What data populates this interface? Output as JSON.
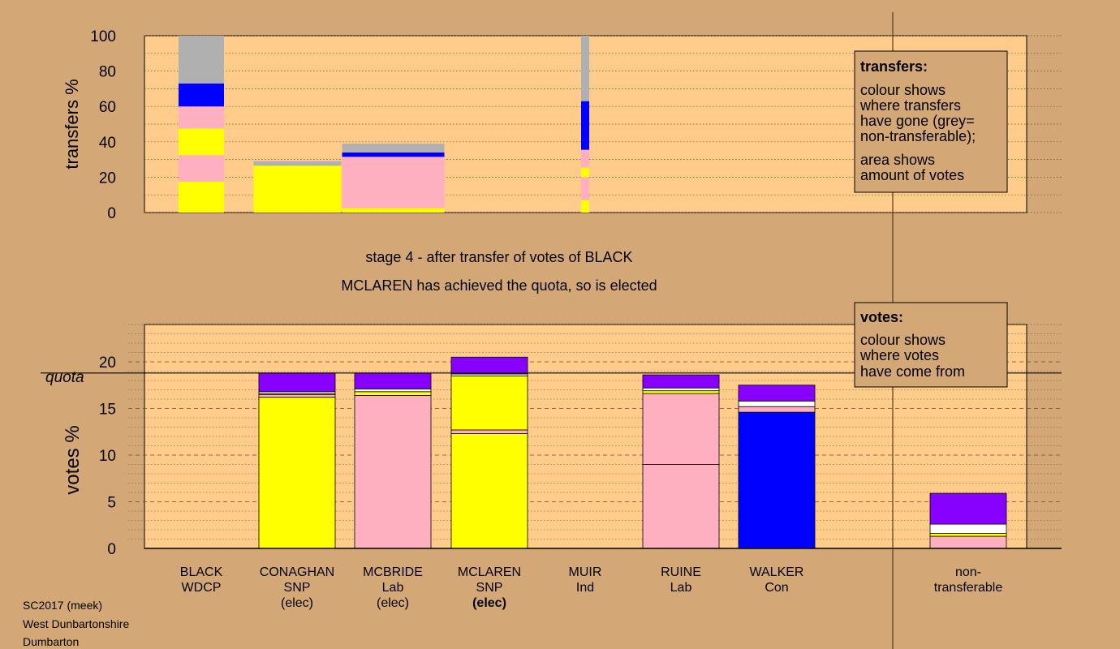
{
  "colors": {
    "page_bg": "#d4a876",
    "plot_bg": "#ffcc8c",
    "party_snp": "#ffff00",
    "party_lab": "#ffb0c0",
    "party_con": "#0000ff",
    "party_other": "#8800ff",
    "non_transferable": "#b0b0b0",
    "white": "#ffffff"
  },
  "stage_text": "stage 4 - after transfer of votes of BLACK",
  "elected_text": "MCLAREN has achieved the quota, so is elected",
  "footer": [
    "SC2017 (meek)",
    "West Dunbartonshire",
    "Dumbarton"
  ],
  "transfers_legend": {
    "title": "transfers:",
    "lines1": [
      "colour shows",
      "where transfers",
      "have gone (grey=",
      "non-transferable);"
    ],
    "lines2": [
      "area shows",
      "amount of votes"
    ]
  },
  "votes_legend": {
    "title": "votes:",
    "lines": [
      "colour shows",
      "where votes",
      "have come from"
    ]
  },
  "quota_label": "quota",
  "candidates": [
    {
      "name": "BLACK",
      "party": "WDCP",
      "status": ""
    },
    {
      "name": "CONAGHAN",
      "party": "SNP",
      "status": "(elec)"
    },
    {
      "name": "MCBRIDE",
      "party": "Lab",
      "status": "(elec)"
    },
    {
      "name": "MCLAREN",
      "party": "SNP",
      "status": "(elec)",
      "status_bold": true
    },
    {
      "name": "MUIR",
      "party": "Ind",
      "status": ""
    },
    {
      "name": "RUINE",
      "party": "Lab",
      "status": ""
    },
    {
      "name": "WALKER",
      "party": "Con",
      "status": ""
    },
    {
      "name": "non-",
      "party": "transferable",
      "status": ""
    }
  ],
  "chart_data": [
    {
      "type": "bar",
      "chart": "transfers",
      "ylabel": "transfers %",
      "ylim": [
        0,
        100
      ],
      "yticks": [
        0,
        20,
        40,
        60,
        80,
        100
      ],
      "bars": [
        {
          "label": "BLACK",
          "segments": [
            {
              "color": "#ffff00",
              "from": 0,
              "to": 17.5
            },
            {
              "color": "#ffb0c0",
              "from": 17.5,
              "to": 32.5
            },
            {
              "color": "#ffff00",
              "from": 32.5,
              "to": 47.5
            },
            {
              "color": "#ffb0c0",
              "from": 47.5,
              "to": 60
            },
            {
              "color": "#0000ff",
              "from": 60,
              "to": 73
            },
            {
              "color": "#b0b0b0",
              "from": 73,
              "to": 100
            }
          ]
        },
        {
          "label": "CONAGHAN",
          "segments": [
            {
              "color": "#ffff00",
              "from": 0,
              "to": 26.5
            },
            {
              "color": "#b0b0b0",
              "from": 26.5,
              "to": 29
            }
          ]
        },
        {
          "label": "MCBRIDE",
          "segments": [
            {
              "color": "#ffff00",
              "from": 0,
              "to": 2.5
            },
            {
              "color": "#ffb0c0",
              "from": 2.5,
              "to": 31.5
            },
            {
              "color": "#0000ff",
              "from": 31.5,
              "to": 34
            },
            {
              "color": "#b0b0b0",
              "from": 34,
              "to": 39
            }
          ]
        },
        {
          "label": "MUIR",
          "segments": [
            {
              "color": "#ffff00",
              "from": 0,
              "to": 7
            },
            {
              "color": "#ffb0c0",
              "from": 7,
              "to": 20
            },
            {
              "color": "#ffff00",
              "from": 20,
              "to": 25.5
            },
            {
              "color": "#ffb0c0",
              "from": 25.5,
              "to": 35.5
            },
            {
              "color": "#0000ff",
              "from": 35.5,
              "to": 63
            },
            {
              "color": "#b0b0b0",
              "from": 63,
              "to": 100
            }
          ]
        }
      ]
    },
    {
      "type": "bar",
      "chart": "votes",
      "ylabel": "votes %",
      "ylim": [
        0,
        24
      ],
      "yticks": [
        0,
        5,
        10,
        15,
        20
      ],
      "quota": 18.8,
      "bars": [
        {
          "label": "CONAGHAN",
          "segments": [
            {
              "color": "#ffff00",
              "from": 0,
              "to": 16.2
            },
            {
              "color": "#ffb0c0",
              "from": 16.2,
              "to": 16.5
            },
            {
              "color": "#ffff00",
              "from": 16.5,
              "to": 16.6
            },
            {
              "color": "#ffffff",
              "from": 16.6,
              "to": 16.8
            },
            {
              "color": "#8800ff",
              "from": 16.8,
              "to": 18.8
            }
          ]
        },
        {
          "label": "MCBRIDE",
          "segments": [
            {
              "color": "#ffb0c0",
              "from": 0,
              "to": 16.4
            },
            {
              "color": "#ffff00",
              "from": 16.4,
              "to": 16.8
            },
            {
              "color": "#ffffff",
              "from": 16.8,
              "to": 17.1
            },
            {
              "color": "#8800ff",
              "from": 17.1,
              "to": 18.8
            }
          ]
        },
        {
          "label": "MCLAREN",
          "segments": [
            {
              "color": "#ffff00",
              "from": 0,
              "to": 12.3
            },
            {
              "color": "#ffb0c0",
              "from": 12.3,
              "to": 12.7
            },
            {
              "color": "#ffff00",
              "from": 12.7,
              "to": 18.5
            },
            {
              "color": "#ffffff",
              "from": 18.5,
              "to": 18.7
            },
            {
              "color": "#8800ff",
              "from": 18.7,
              "to": 20.5
            }
          ]
        },
        {
          "label": "RUINE",
          "segments": [
            {
              "color": "#ffb0c0",
              "from": 0,
              "to": 9.0
            },
            {
              "color": "#ffb0c0",
              "from": 9.0,
              "to": 16.6
            },
            {
              "color": "#ffff00",
              "from": 16.6,
              "to": 16.9
            },
            {
              "color": "#ffffff",
              "from": 16.9,
              "to": 17.2
            },
            {
              "color": "#8800ff",
              "from": 17.2,
              "to": 18.6
            }
          ]
        },
        {
          "label": "WALKER",
          "segments": [
            {
              "color": "#0000ff",
              "from": 0,
              "to": 14.6
            },
            {
              "color": "#ffb0c0",
              "from": 14.6,
              "to": 15.2
            },
            {
              "color": "#ffffff",
              "from": 15.2,
              "to": 15.8
            },
            {
              "color": "#8800ff",
              "from": 15.8,
              "to": 17.5
            }
          ]
        },
        {
          "label": "non-transferable",
          "segments": [
            {
              "color": "#ffb0c0",
              "from": 0,
              "to": 1.3
            },
            {
              "color": "#ffff00",
              "from": 1.3,
              "to": 1.6
            },
            {
              "color": "#ffffff",
              "from": 1.6,
              "to": 2.6
            },
            {
              "color": "#8800ff",
              "from": 2.6,
              "to": 5.9
            }
          ]
        }
      ]
    }
  ]
}
